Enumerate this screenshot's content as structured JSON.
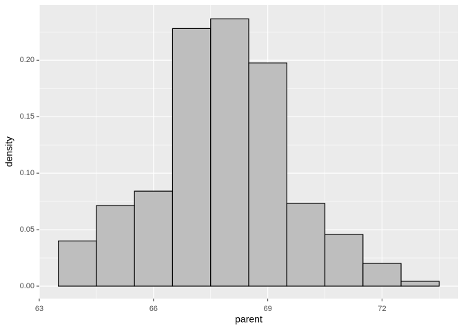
{
  "chart_data": {
    "type": "histogram",
    "x_label": "parent",
    "y_label": "density",
    "bins": [
      63.5,
      64.5,
      65.5,
      66.5,
      67.5,
      68.5,
      69.5,
      70.5,
      71.5,
      72.5,
      73.5
    ],
    "values": [
      0.04,
      0.0713,
      0.0841,
      0.228,
      0.2366,
      0.1976,
      0.0732,
      0.0457,
      0.0201,
      0.0043
    ],
    "color": "#bebebe",
    "edge_color": "#000000",
    "xlim": [
      63,
      74
    ],
    "xticks": [
      63,
      66,
      69,
      72
    ],
    "ylim": [
      -0.011,
      0.249
    ],
    "yticks": [
      {
        "value": 0,
        "label": "0.00"
      },
      {
        "value": 0.05,
        "label": "0.05"
      },
      {
        "value": 0.1,
        "label": "0.10"
      },
      {
        "value": 0.15,
        "label": "0.15"
      },
      {
        "value": 0.2,
        "label": "0.20"
      }
    ],
    "grid": true
  }
}
